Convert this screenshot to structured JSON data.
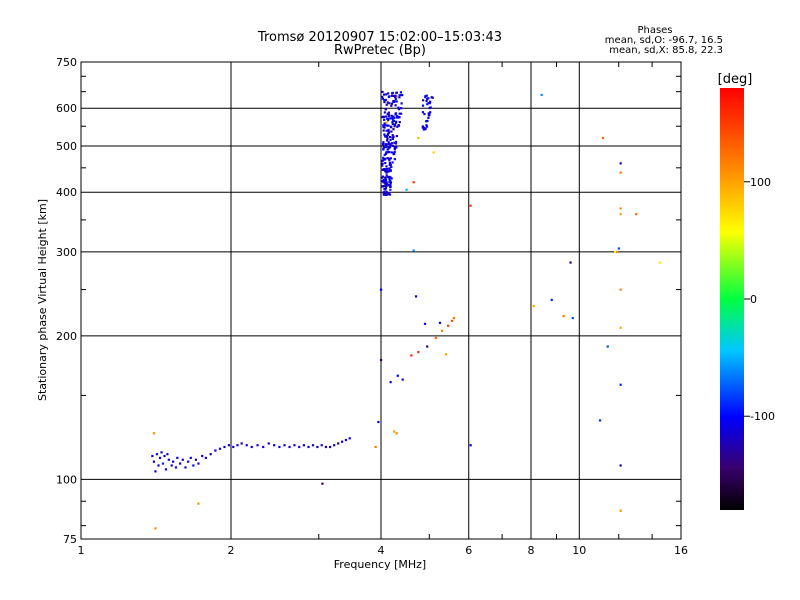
{
  "chart_data": {
    "type": "scatter",
    "title": "Tromsø 20120907 15:02:00–15:03:43",
    "subtitle": "RwPretec (Bp)",
    "xlabel": "Frequency [MHz]",
    "ylabel": "Stationary phase Virtual Height [km]",
    "x_scale": "log",
    "y_scale": "log",
    "xlim": [
      1,
      16
    ],
    "ylim": [
      75,
      750
    ],
    "x_ticks": [
      1,
      2,
      4,
      6,
      8,
      10,
      16
    ],
    "y_ticks": [
      75,
      100,
      200,
      300,
      400,
      500,
      600,
      750
    ],
    "x_tick_labels": [
      "1",
      "2",
      "4",
      "6",
      "8",
      "10",
      "16"
    ],
    "y_tick_labels": [
      "75",
      "100",
      "200",
      "300",
      "400",
      "500",
      "600",
      "750"
    ],
    "grid": true,
    "info": {
      "heading": "Phases",
      "line1": "mean, sd,O: -96.7, 16.5",
      "line2": "mean, sd,X:  85.8, 22.3"
    },
    "colorbar": {
      "label": "[deg]",
      "range": [
        -180,
        180
      ],
      "ticks": [
        100,
        0,
        -100
      ],
      "tick_labels": [
        "100",
        "0",
        "-100"
      ]
    },
    "points": [
      [
        1.39,
        112,
        -110
      ],
      [
        1.4,
        109,
        -115
      ],
      [
        1.41,
        104,
        -105
      ],
      [
        1.42,
        113,
        -112
      ],
      [
        1.43,
        107,
        -108
      ],
      [
        1.44,
        111,
        -118
      ],
      [
        1.45,
        114,
        -110
      ],
      [
        1.46,
        108,
        -90
      ],
      [
        1.47,
        112,
        -112
      ],
      [
        1.48,
        105,
        -100
      ],
      [
        1.49,
        113,
        -115
      ],
      [
        1.5,
        110,
        -108
      ],
      [
        1.52,
        107,
        -112
      ],
      [
        1.53,
        109,
        -118
      ],
      [
        1.55,
        106,
        -110
      ],
      [
        1.56,
        111,
        -105
      ],
      [
        1.58,
        108,
        -112
      ],
      [
        1.6,
        110,
        -115
      ],
      [
        1.62,
        106,
        -108
      ],
      [
        1.64,
        109,
        -112
      ],
      [
        1.66,
        111,
        -110
      ],
      [
        1.68,
        107,
        -100
      ],
      [
        1.7,
        110,
        -115
      ],
      [
        1.72,
        108,
        -112
      ],
      [
        1.75,
        112,
        -110
      ],
      [
        1.78,
        111,
        -118
      ],
      [
        1.82,
        113,
        -112
      ],
      [
        1.86,
        115,
        -108
      ],
      [
        1.9,
        116,
        -112
      ],
      [
        1.94,
        117,
        -115
      ],
      [
        1.98,
        118,
        -110
      ],
      [
        2.02,
        117,
        -112
      ],
      [
        2.06,
        118,
        -108
      ],
      [
        2.1,
        119,
        -115
      ],
      [
        2.15,
        118,
        -110
      ],
      [
        2.2,
        117,
        -112
      ],
      [
        2.26,
        118,
        -112
      ],
      [
        2.32,
        117,
        -108
      ],
      [
        2.38,
        119,
        -115
      ],
      [
        2.44,
        118,
        -110
      ],
      [
        2.5,
        117,
        -105
      ],
      [
        2.56,
        118,
        -112
      ],
      [
        2.62,
        117,
        -110
      ],
      [
        2.68,
        118,
        -115
      ],
      [
        2.74,
        117,
        -112
      ],
      [
        2.8,
        118,
        -110
      ],
      [
        2.86,
        117,
        -108
      ],
      [
        2.92,
        118,
        -115
      ],
      [
        2.98,
        117,
        -112
      ],
      [
        3.04,
        118,
        -110
      ],
      [
        3.1,
        117,
        -120
      ],
      [
        3.16,
        117,
        -112
      ],
      [
        3.22,
        118,
        -110
      ],
      [
        3.28,
        119,
        -115
      ],
      [
        3.34,
        120,
        -112
      ],
      [
        3.4,
        121,
        -108
      ],
      [
        3.46,
        122,
        -110
      ],
      [
        1.4,
        125,
        110
      ],
      [
        1.41,
        79,
        110
      ],
      [
        1.72,
        89,
        110
      ],
      [
        3.05,
        98,
        -150
      ],
      [
        3.9,
        117,
        120
      ],
      [
        3.95,
        132,
        -100
      ],
      [
        4.3,
        125,
        110
      ],
      [
        4.25,
        126,
        105
      ],
      [
        4.18,
        160,
        -110
      ],
      [
        4.32,
        165,
        -100
      ],
      [
        4.42,
        162,
        -110
      ],
      [
        4.6,
        182,
        160
      ],
      [
        4.75,
        185,
        160
      ],
      [
        4.95,
        190,
        -150
      ],
      [
        5.15,
        198,
        130
      ],
      [
        5.3,
        205,
        120
      ],
      [
        5.45,
        210,
        150
      ],
      [
        5.55,
        215,
        140
      ],
      [
        5.6,
        218,
        120
      ],
      [
        5.25,
        213,
        -100
      ],
      [
        4.9,
        212,
        -105
      ],
      [
        5.4,
        183,
        100
      ],
      [
        4.0,
        178,
        -150
      ],
      [
        4.0,
        250,
        -110
      ],
      [
        4.7,
        242,
        -105
      ],
      [
        4.65,
        302,
        -60
      ],
      [
        4.5,
        405,
        -50
      ],
      [
        4.65,
        420,
        155
      ],
      [
        4.75,
        520,
        90
      ],
      [
        4.9,
        545,
        100
      ],
      [
        5.1,
        485,
        80
      ],
      [
        4.3,
        635,
        110
      ],
      [
        4.1,
        560,
        100
      ],
      [
        6.05,
        375,
        150
      ],
      [
        8.1,
        231,
        100
      ],
      [
        8.4,
        640,
        -60
      ],
      [
        8.8,
        238,
        -90
      ],
      [
        9.3,
        220,
        120
      ],
      [
        9.6,
        285,
        -150
      ],
      [
        9.7,
        218,
        -80
      ],
      [
        11.0,
        133,
        -90
      ],
      [
        11.15,
        520,
        130
      ],
      [
        11.4,
        190,
        -80
      ],
      [
        11.8,
        300,
        60
      ],
      [
        11.9,
        300,
        110
      ],
      [
        12.0,
        305,
        -80
      ],
      [
        12.1,
        460,
        -110
      ],
      [
        12.1,
        440,
        120
      ],
      [
        12.1,
        370,
        110
      ],
      [
        12.1,
        360,
        100
      ],
      [
        12.1,
        250,
        110
      ],
      [
        12.1,
        208,
        100
      ],
      [
        12.1,
        158,
        -90
      ],
      [
        12.1,
        107,
        -130
      ],
      [
        12.1,
        86,
        110
      ],
      [
        13.0,
        360,
        130
      ],
      [
        14.5,
        285,
        70
      ],
      [
        6.05,
        118,
        -100
      ]
    ],
    "f_layer_cluster": {
      "freq_range": [
        4.02,
        4.45
      ],
      "height_range": [
        395,
        650
      ],
      "color_deg": -110
    },
    "f_layer_cluster_2": {
      "freq_range": [
        4.85,
        5.1
      ],
      "height_range": [
        540,
        640
      ],
      "color_deg": -110
    }
  }
}
